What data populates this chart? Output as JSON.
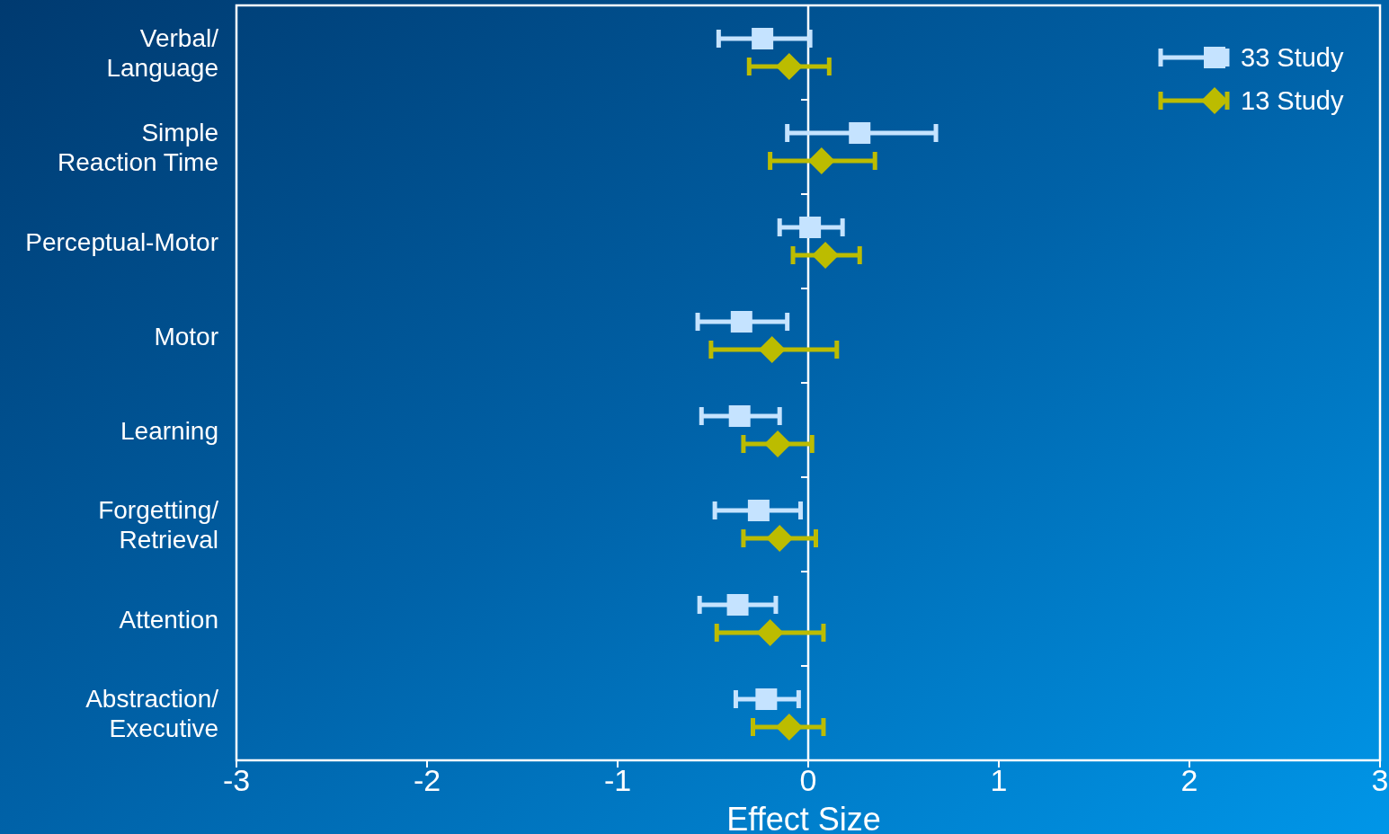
{
  "chart_data": {
    "type": "scatter",
    "orientation": "horizontal",
    "xlabel": "Effect Size",
    "categories": [
      "Verbal/\nLanguage",
      "Simple\nReaction Time",
      "Perceptual-Motor",
      "Motor",
      "Learning",
      "Forgetting/\nRetrieval",
      "Attention",
      "Abstraction/\nExecutive"
    ],
    "xlim": [
      -3,
      3
    ],
    "xticks": [
      -3,
      -2,
      -1,
      0,
      1,
      2,
      3
    ],
    "legend": "top right",
    "ref_lines": [
      {
        "axis": "x",
        "value": 0,
        "color": "#ffffff"
      }
    ],
    "series": [
      {
        "name": "33 Study",
        "color": "#c5e3ff",
        "marker": "square",
        "values": [
          -0.24,
          0.27,
          0.01,
          -0.35,
          -0.36,
          -0.26,
          -0.37,
          -0.22
        ],
        "errors": [
          [
            -0.47,
            0.01
          ],
          [
            -0.11,
            0.67
          ],
          [
            -0.15,
            0.18
          ],
          [
            -0.58,
            -0.11
          ],
          [
            -0.56,
            -0.15
          ],
          [
            -0.49,
            -0.04
          ],
          [
            -0.57,
            -0.17
          ],
          [
            -0.38,
            -0.05
          ]
        ]
      },
      {
        "name": "13 Study",
        "color": "#bcbc00",
        "marker": "diamond",
        "values": [
          -0.1,
          0.07,
          0.09,
          -0.19,
          -0.16,
          -0.15,
          -0.2,
          -0.1
        ],
        "errors": [
          [
            -0.31,
            0.11
          ],
          [
            -0.2,
            0.35
          ],
          [
            -0.08,
            0.27
          ],
          [
            -0.51,
            0.15
          ],
          [
            -0.34,
            0.02
          ],
          [
            -0.34,
            0.04
          ],
          [
            -0.48,
            0.08
          ],
          [
            -0.29,
            0.08
          ]
        ]
      }
    ]
  }
}
